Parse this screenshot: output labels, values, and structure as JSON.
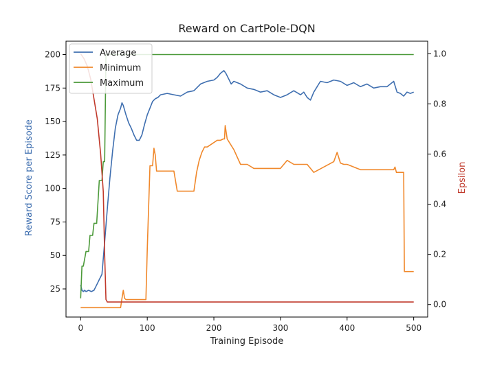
{
  "chart_data": {
    "type": "line",
    "title": "Reward on CartPole-DQN",
    "xlabel": "Training Episode",
    "ylabel": "Reward Score per Episode",
    "y2label": "Epsilon",
    "xlim": [
      -22,
      521
    ],
    "ylim": [
      4,
      210
    ],
    "y2lim": [
      -0.05,
      1.05
    ],
    "xticks": [
      0,
      100,
      200,
      300,
      400,
      500
    ],
    "xtick_labels": [
      "0",
      "100",
      "200",
      "300",
      "400",
      "500"
    ],
    "yticks": [
      25,
      50,
      75,
      100,
      125,
      150,
      175,
      200
    ],
    "ytick_labels": [
      "25",
      "50",
      "75",
      "100",
      "125",
      "150",
      "175",
      "200"
    ],
    "y2ticks": [
      0.0,
      0.2,
      0.4,
      0.6,
      0.8,
      1.0
    ],
    "y2tick_labels": [
      "0.0",
      "0.2",
      "0.4",
      "0.6",
      "0.8",
      "1.0"
    ],
    "grid": false,
    "legend_position": "top-left",
    "series": [
      {
        "name": "Average",
        "axis": "left",
        "color": "#3f6fb0",
        "x": [
          0,
          2,
          4,
          6,
          8,
          12,
          16,
          20,
          24,
          28,
          32,
          36,
          40,
          44,
          48,
          52,
          56,
          60,
          62,
          64,
          68,
          72,
          76,
          80,
          84,
          88,
          92,
          96,
          100,
          104,
          108,
          112,
          116,
          120,
          130,
          140,
          150,
          160,
          170,
          180,
          190,
          200,
          205,
          210,
          215,
          218,
          222,
          226,
          230,
          240,
          250,
          260,
          270,
          280,
          290,
          300,
          310,
          320,
          330,
          335,
          340,
          345,
          350,
          360,
          370,
          380,
          390,
          400,
          410,
          420,
          430,
          440,
          450,
          460,
          470,
          475,
          480,
          485,
          490,
          495,
          500
        ],
        "values": [
          28,
          24,
          23,
          24,
          23,
          24,
          23,
          24,
          28,
          32,
          36,
          60,
          85,
          108,
          128,
          145,
          155,
          160,
          164,
          162,
          155,
          149,
          145,
          140,
          136,
          136,
          140,
          148,
          155,
          160,
          165,
          167,
          168,
          170,
          171,
          170,
          169,
          172,
          173,
          178,
          180,
          181,
          183,
          186,
          188,
          186,
          182,
          178,
          180,
          178,
          175,
          174,
          172,
          173,
          170,
          168,
          170,
          173,
          170,
          172,
          168,
          166,
          172,
          180,
          179,
          181,
          180,
          177,
          179,
          176,
          178,
          175,
          176,
          176,
          180,
          172,
          171,
          169,
          172,
          171,
          172
        ]
      },
      {
        "name": "Minimum",
        "axis": "left",
        "color": "#f0882b",
        "x": [
          0,
          2,
          4,
          60,
          62,
          64,
          66,
          68,
          90,
          92,
          94,
          98,
          100,
          104,
          106,
          108,
          110,
          112,
          114,
          140,
          145,
          170,
          174,
          178,
          182,
          186,
          190,
          205,
          210,
          214,
          216,
          217,
          220,
          230,
          240,
          250,
          260,
          300,
          310,
          320,
          340,
          350,
          380,
          385,
          390,
          395,
          400,
          410,
          420,
          470,
          472,
          474,
          480,
          485,
          486,
          490,
          495,
          500
        ],
        "values": [
          11,
          11,
          11,
          11,
          18,
          24,
          18,
          17,
          17,
          17,
          17,
          17,
          55,
          117,
          117,
          117,
          130,
          125,
          113,
          113,
          98,
          98,
          112,
          121,
          127,
          131,
          131,
          136,
          136,
          137,
          137,
          147,
          137,
          129,
          118,
          118,
          115,
          115,
          121,
          118,
          118,
          112,
          120,
          127,
          119,
          118,
          118,
          116,
          114,
          114,
          116,
          112,
          112,
          112,
          38,
          38,
          38,
          38
        ]
      },
      {
        "name": "Maximum",
        "axis": "left",
        "color": "#4c9a3a",
        "x": [
          0,
          2,
          4,
          8,
          12,
          14,
          18,
          20,
          24,
          28,
          32,
          34,
          36,
          38,
          40,
          42,
          500
        ],
        "values": [
          18,
          42,
          42,
          53,
          53,
          65,
          65,
          74,
          74,
          106,
          106,
          120,
          120,
          200,
          200,
          200,
          200
        ]
      },
      {
        "name": "",
        "axis": "right",
        "color": "#c0392b",
        "x": [
          0,
          5,
          10,
          15,
          20,
          25,
          30,
          34,
          36,
          38,
          40,
          500
        ],
        "values": [
          1.0,
          0.98,
          0.95,
          0.9,
          0.82,
          0.74,
          0.6,
          0.45,
          0.2,
          0.02,
          0.01,
          0.01
        ]
      }
    ]
  }
}
